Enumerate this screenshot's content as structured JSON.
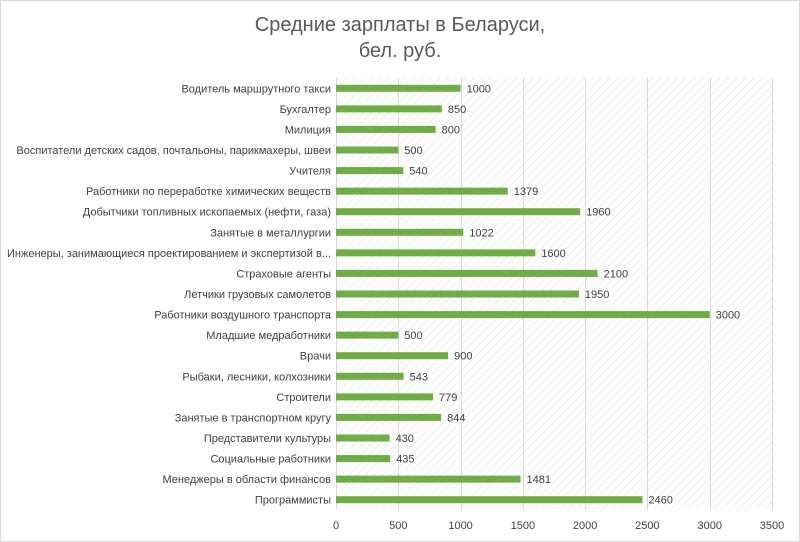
{
  "chart_data": {
    "type": "bar",
    "orientation": "horizontal",
    "title_line1": "Средние зарплаты в Беларуси,",
    "title_line2": "бел. руб.",
    "xlim": [
      0,
      3500
    ],
    "x_ticks": [
      "0",
      "500",
      "1000",
      "1500",
      "2000",
      "2500",
      "3000",
      "3500"
    ],
    "x_tick_values": [
      0,
      500,
      1000,
      1500,
      2000,
      2500,
      3000,
      3500
    ],
    "grid": true,
    "bar_color": "#70ad47",
    "plot_background": "hatched",
    "categories": [
      "Водитель маршрутного такси",
      "Бухгалтер",
      "Милиция",
      "Воспитатели детских садов, почтальоны, парикмахеры, швеи",
      "Учителя",
      "Работники по переработке химических веществ",
      "Добытчики топливных ископаемых (нефти, газа)",
      "Занятые в металлургии",
      "Инженеры, занимающиеся проектированием и экспертизой в...",
      "Страховые агенты",
      "Летчики грузовых самолетов",
      "Работники воздушного транспорта",
      "Младшие медработники",
      "Врачи",
      "Рыбаки, лесники, колхозники",
      "Строители",
      "Занятые в транспортном кругу",
      "Представители культуры",
      "Социальные работники",
      "Менеджеры в области финансов",
      "Программисты"
    ],
    "values": [
      1000,
      850,
      800,
      500,
      540,
      1379,
      1960,
      1022,
      1600,
      2100,
      1950,
      3000,
      500,
      900,
      543,
      779,
      844,
      430,
      435,
      1481,
      2460
    ]
  }
}
